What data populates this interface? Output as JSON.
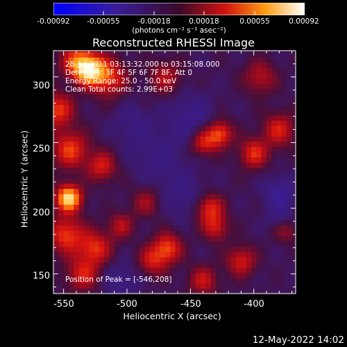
{
  "colorbar": {
    "ticks": [
      "-0.00092",
      "-0.00055",
      "-0.00018",
      "0.00018",
      "0.00055",
      "0.00092"
    ],
    "unit": "(photons cm⁻² s⁻¹ asec⁻²)"
  },
  "info": {
    "time_range": "28-Jul-2011 03:13:32.000 to 03:15:08.000",
    "detectors": "Detectors: 3F 4F 5F 6F 7F 8F, Att 0",
    "energy": "Energy Range: 25.0 - 50.0 keV",
    "clean": "Clean    Total counts: 2.99E+03",
    "peak": "Position of Peak = [-546,208]"
  },
  "timestamp": "12-May-2022 14:02",
  "chart_data": {
    "type": "heatmap",
    "title": "Reconstructed RHESSI Image",
    "xlabel": "Heliocentric X (arcsec)",
    "ylabel": "Heliocentric Y (arcsec)",
    "xlim": [
      -558,
      -367
    ],
    "ylim": [
      135,
      320
    ],
    "x_ticks": [
      -550,
      -500,
      -450,
      -400
    ],
    "y_ticks": [
      150,
      200,
      250,
      300
    ],
    "colorbar_range": [
      -0.00092,
      0.00092
    ],
    "peak_position": [
      -546,
      208
    ],
    "blobs": [
      {
        "x": -546,
        "y": 208,
        "amp": 1.0,
        "sigma": 7
      },
      {
        "x": -530,
        "y": 306,
        "amp": 0.85,
        "sigma": 8
      },
      {
        "x": -515,
        "y": 300,
        "amp": 0.55,
        "sigma": 10
      },
      {
        "x": -540,
        "y": 312,
        "amp": 0.5,
        "sigma": 9
      },
      {
        "x": -555,
        "y": 275,
        "amp": 0.55,
        "sigma": 9
      },
      {
        "x": -545,
        "y": 245,
        "amp": 0.55,
        "sigma": 10
      },
      {
        "x": -520,
        "y": 232,
        "amp": 0.45,
        "sigma": 8
      },
      {
        "x": -548,
        "y": 180,
        "amp": 0.55,
        "sigma": 10
      },
      {
        "x": -525,
        "y": 170,
        "amp": 0.5,
        "sigma": 9
      },
      {
        "x": -535,
        "y": 150,
        "amp": 0.45,
        "sigma": 9
      },
      {
        "x": -505,
        "y": 187,
        "amp": 0.35,
        "sigma": 7
      },
      {
        "x": -468,
        "y": 170,
        "amp": 0.55,
        "sigma": 8
      },
      {
        "x": -480,
        "y": 160,
        "amp": 0.4,
        "sigma": 8
      },
      {
        "x": -427,
        "y": 257,
        "amp": 0.6,
        "sigma": 7
      },
      {
        "x": -440,
        "y": 250,
        "amp": 0.45,
        "sigma": 7
      },
      {
        "x": -400,
        "y": 242,
        "amp": 0.5,
        "sigma": 8
      },
      {
        "x": -380,
        "y": 260,
        "amp": 0.45,
        "sigma": 9
      },
      {
        "x": -435,
        "y": 200,
        "amp": 0.5,
        "sigma": 8
      },
      {
        "x": -430,
        "y": 185,
        "amp": 0.4,
        "sigma": 7
      },
      {
        "x": -410,
        "y": 160,
        "amp": 0.45,
        "sigma": 8
      },
      {
        "x": -440,
        "y": 145,
        "amp": 0.4,
        "sigma": 8
      },
      {
        "x": -470,
        "y": 300,
        "amp": 0.35,
        "sigma": 9
      },
      {
        "x": -485,
        "y": 205,
        "amp": 0.3,
        "sigma": 8
      },
      {
        "x": -375,
        "y": 185,
        "amp": 0.35,
        "sigma": 7
      },
      {
        "x": -395,
        "y": 300,
        "amp": 0.35,
        "sigma": 9
      },
      {
        "x": -475,
        "y": 240,
        "amp": -0.2,
        "sigma": 14
      },
      {
        "x": -380,
        "y": 212,
        "amp": -0.35,
        "sigma": 8
      },
      {
        "x": -378,
        "y": 192,
        "amp": -0.3,
        "sigma": 7
      },
      {
        "x": -450,
        "y": 270,
        "amp": -0.25,
        "sigma": 12
      },
      {
        "x": -455,
        "y": 210,
        "amp": -0.2,
        "sigma": 12
      },
      {
        "x": -495,
        "y": 265,
        "amp": -0.2,
        "sigma": 10
      },
      {
        "x": -505,
        "y": 145,
        "amp": -0.2,
        "sigma": 10
      }
    ]
  }
}
